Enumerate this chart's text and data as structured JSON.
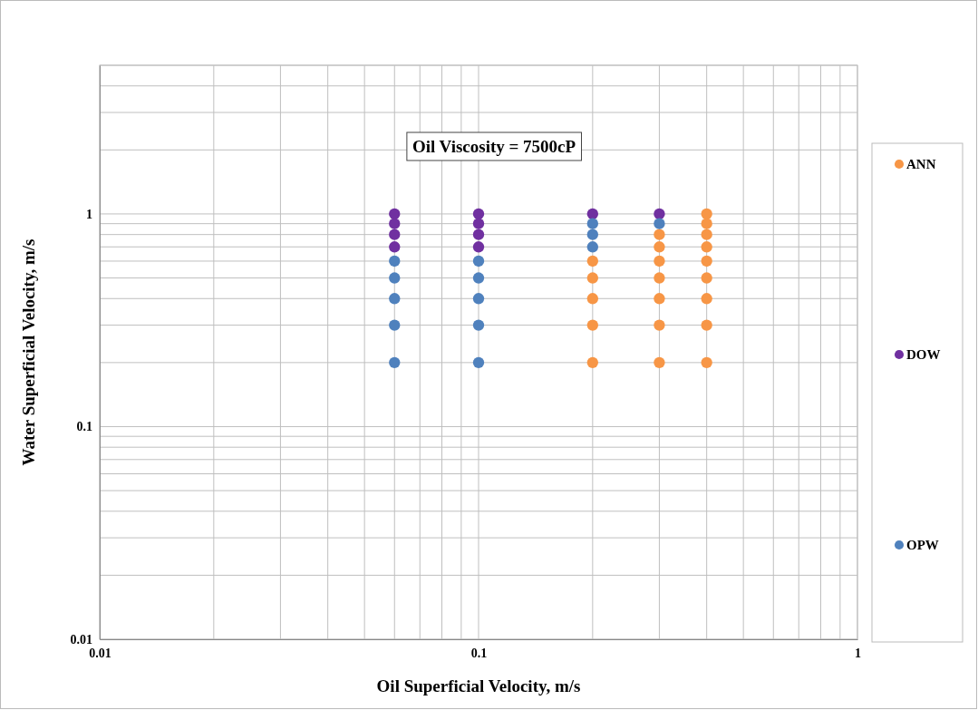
{
  "chart_data": {
    "type": "scatter",
    "xlabel": "Oil Superficial Velocity, m/s",
    "ylabel": "Water Superficial Velocity, m/s",
    "log": "xy",
    "grid": true,
    "legend": "right",
    "marker": "circle",
    "xlim": [
      0.01,
      1
    ],
    "ylim": [
      0.01,
      5
    ],
    "xticks": [
      0.01,
      {
        "value": 0.02,
        "label": null
      },
      {
        "value": 0.03,
        "label": null
      },
      {
        "value": 0.04,
        "label": null
      },
      {
        "value": 0.05,
        "label": null
      },
      {
        "value": 0.06,
        "label": null
      },
      {
        "value": 0.07,
        "label": null
      },
      {
        "value": 0.08,
        "label": null
      },
      {
        "value": 0.09,
        "label": null
      },
      0.1,
      {
        "value": 0.2,
        "label": null
      },
      {
        "value": 0.3,
        "label": null
      },
      {
        "value": 0.4,
        "label": null
      },
      {
        "value": 0.5,
        "label": null
      },
      {
        "value": 0.6,
        "label": null
      },
      {
        "value": 0.7,
        "label": null
      },
      {
        "value": 0.8,
        "label": null
      },
      {
        "value": 0.9,
        "label": null
      },
      1
    ],
    "yticks": [
      0.01,
      {
        "value": 0.02,
        "label": null
      },
      {
        "value": 0.03,
        "label": null
      },
      {
        "value": 0.04,
        "label": null
      },
      {
        "value": 0.05,
        "label": null
      },
      {
        "value": 0.06,
        "label": null
      },
      {
        "value": 0.07,
        "label": null
      },
      {
        "value": 0.08,
        "label": null
      },
      {
        "value": 0.09,
        "label": null
      },
      0.1,
      {
        "value": 0.2,
        "label": null
      },
      {
        "value": 0.3,
        "label": null
      },
      {
        "value": 0.4,
        "label": null
      },
      {
        "value": 0.5,
        "label": null
      },
      {
        "value": 0.6,
        "label": null
      },
      {
        "value": 0.7,
        "label": null
      },
      {
        "value": 0.8,
        "label": null
      },
      {
        "value": 0.9,
        "label": null
      },
      1,
      {
        "value": 2,
        "label": null
      },
      {
        "value": 3,
        "label": null
      },
      {
        "value": 4,
        "label": null
      },
      {
        "value": 5,
        "label": null
      }
    ],
    "annotations": [
      "Oil Viscosity = 7500cP"
    ],
    "series": [
      {
        "name": "ANN",
        "color": "#f79646",
        "x": [
          0.2,
          0.2,
          0.2,
          0.2,
          0.2,
          0.3,
          0.3,
          0.3,
          0.3,
          0.3,
          0.3,
          0.3,
          0.4,
          0.4,
          0.4,
          0.4,
          0.4,
          0.4,
          0.4,
          0.4,
          0.4
        ],
        "values": [
          0.6,
          0.5,
          0.4,
          0.3,
          0.2,
          0.8,
          0.7,
          0.6,
          0.5,
          0.4,
          0.3,
          0.2,
          1,
          0.9,
          0.8,
          0.7,
          0.6,
          0.5,
          0.4,
          0.3,
          0.2
        ]
      },
      {
        "name": "DOW",
        "color": "#7030a0",
        "x": [
          0.06,
          0.06,
          0.06,
          0.06,
          0.1,
          0.1,
          0.1,
          0.1,
          0.2,
          0.3
        ],
        "values": [
          1,
          0.9,
          0.8,
          0.7,
          1,
          0.9,
          0.8,
          0.7,
          1,
          1
        ]
      },
      {
        "name": "OPW",
        "color": "#4f81bd",
        "x": [
          0.06,
          0.06,
          0.06,
          0.06,
          0.06,
          0.1,
          0.1,
          0.1,
          0.1,
          0.1,
          0.2,
          0.2,
          0.2,
          0.3
        ],
        "values": [
          0.6,
          0.5,
          0.4,
          0.3,
          0.2,
          0.6,
          0.5,
          0.4,
          0.3,
          0.2,
          0.9,
          0.8,
          0.7,
          0.9
        ]
      }
    ]
  }
}
